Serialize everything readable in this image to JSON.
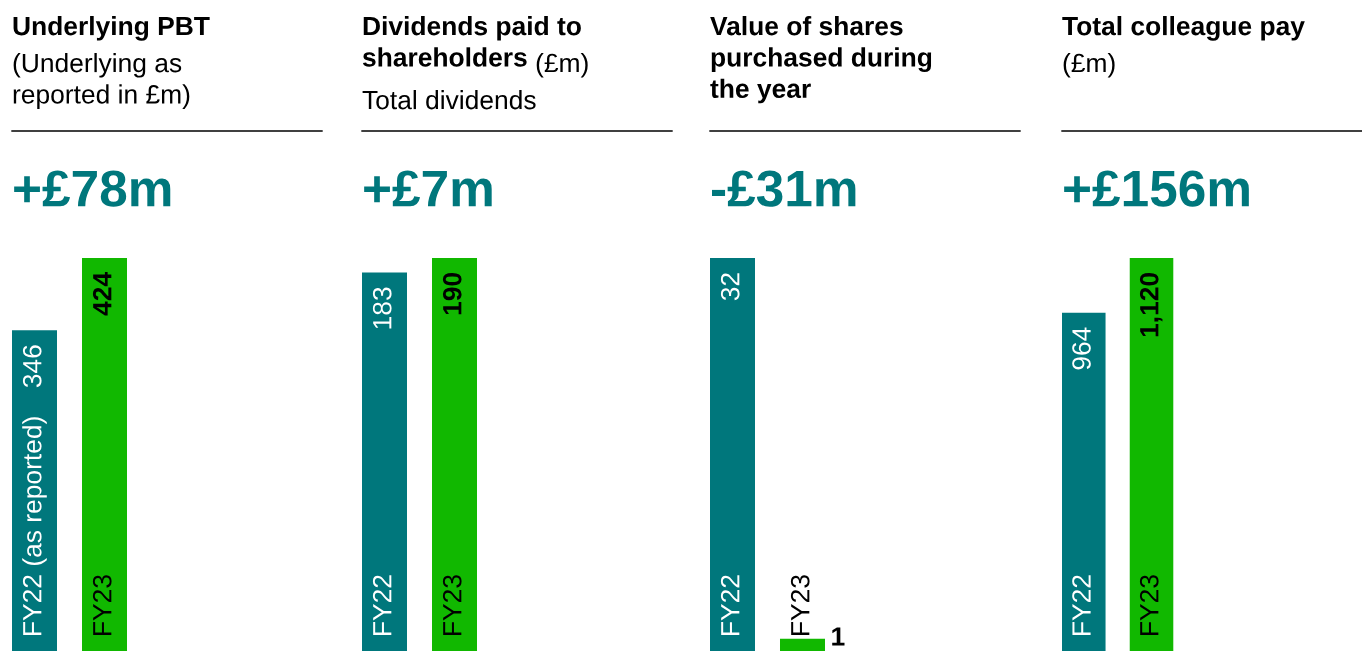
{
  "chart_data": [
    {
      "type": "bar",
      "title": "Underlying PBT",
      "subtitle": "(Underlying as\nreported in £m)",
      "annotations": [
        "+£78m"
      ],
      "categories": [
        "FY22 (as reported)",
        "FY23"
      ],
      "values": [
        346,
        424
      ],
      "value_labels": [
        "346",
        "424"
      ],
      "colors": [
        "#00777c",
        "#11b800"
      ]
    },
    {
      "type": "bar",
      "title": "Dividends paid to\nshareholders",
      "subtitle": "(£m)\nTotal dividends",
      "annotations": [
        "+£7m"
      ],
      "categories": [
        "FY22",
        "FY23"
      ],
      "values": [
        183,
        190
      ],
      "value_labels": [
        "183",
        "190"
      ],
      "colors": [
        "#00777c",
        "#11b800"
      ]
    },
    {
      "type": "bar",
      "title": "Value of shares\npurchased during\nthe year",
      "annotations": [
        "-£31m"
      ],
      "categories": [
        "FY22",
        "FY23"
      ],
      "values": [
        32,
        1
      ],
      "value_labels": [
        "32",
        "1"
      ],
      "colors": [
        "#00777c",
        "#11b800"
      ]
    },
    {
      "type": "bar",
      "title": "Total colleague pay",
      "subtitle": "(£m)",
      "annotations": [
        "+£156m"
      ],
      "categories": [
        "FY22",
        "FY23"
      ],
      "values": [
        964,
        1120
      ],
      "value_labels": [
        "964",
        "1,120"
      ],
      "colors": [
        "#00777c",
        "#11b800"
      ]
    }
  ]
}
